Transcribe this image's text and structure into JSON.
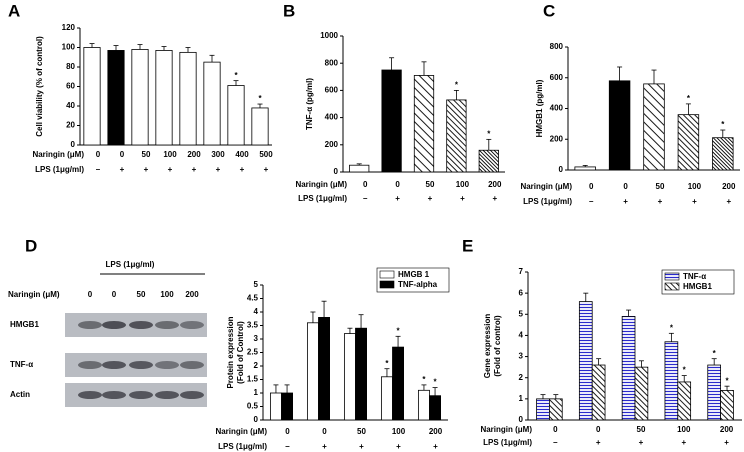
{
  "chart_data": [
    {
      "type": "bar",
      "label": "A",
      "ylabel": [
        "Cell viability (% of control)"
      ],
      "naringin_label": "Naringin (μM)",
      "lps_label": "LPS (1μg/ml)",
      "categories": [
        "0",
        "0",
        "50",
        "100",
        "200",
        "300",
        "400",
        "500"
      ],
      "lps": [
        "–",
        "+",
        "+",
        "+",
        "+",
        "+",
        "+",
        "+"
      ],
      "values": [
        100,
        97,
        98,
        97,
        95,
        85,
        61,
        38
      ],
      "errors": [
        4,
        5,
        5,
        4,
        5,
        7,
        5,
        4
      ],
      "significance": [
        null,
        null,
        null,
        null,
        null,
        null,
        "*",
        "*"
      ],
      "colors": [
        "#ffffff",
        "#000000",
        "#ffffff",
        "#ffffff",
        "#ffffff",
        "#ffffff",
        "#ffffff",
        "#ffffff"
      ],
      "patterns": [
        "solid",
        "solid",
        "solid",
        "solid",
        "solid",
        "solid",
        "solid",
        "solid"
      ],
      "ylim": [
        0,
        120
      ],
      "yticks": [
        0,
        20,
        40,
        60,
        80,
        100,
        120
      ]
    },
    {
      "type": "bar",
      "label": "B",
      "ylabel": [
        "TNF-α (pg/ml)"
      ],
      "naringin_label": "Naringin (μM)",
      "lps_label": "LPS (1μg/ml)",
      "categories": [
        "0",
        "0",
        "50",
        "100",
        "200"
      ],
      "lps": [
        "–",
        "+",
        "+",
        "+",
        "+"
      ],
      "values": [
        50,
        750,
        710,
        530,
        160
      ],
      "errors": [
        10,
        90,
        100,
        70,
        80
      ],
      "significance": [
        null,
        null,
        null,
        "*",
        "*"
      ],
      "colors": [
        "#ffffff",
        "#000000",
        "#000000",
        "#000000",
        "#000000"
      ],
      "patterns": [
        "solid",
        "solid",
        "hatch-sparse",
        "hatch",
        "hatch-dense"
      ],
      "ylim": [
        0,
        1000
      ],
      "yticks": [
        0,
        200,
        400,
        600,
        800,
        1000
      ]
    },
    {
      "type": "bar",
      "label": "C",
      "ylabel": [
        "HMGB1 (pg/ml)"
      ],
      "naringin_label": "Naringin (μM)",
      "lps_label": "LPS (1μg/ml)",
      "categories": [
        "0",
        "0",
        "50",
        "100",
        "200"
      ],
      "lps": [
        "–",
        "+",
        "+",
        "+",
        "+"
      ],
      "values": [
        20,
        580,
        560,
        360,
        210
      ],
      "errors": [
        10,
        90,
        90,
        70,
        50
      ],
      "significance": [
        null,
        null,
        null,
        "*",
        "*"
      ],
      "colors": [
        "#ffffff",
        "#000000",
        "#000000",
        "#000000",
        "#000000"
      ],
      "patterns": [
        "solid",
        "solid",
        "hatch-sparse",
        "hatch",
        "hatch-dense"
      ],
      "ylim": [
        0,
        800
      ],
      "yticks": [
        0,
        200,
        400,
        600,
        800
      ]
    },
    {
      "type": "bar",
      "label": "D",
      "ylabel": [
        "Protein expression",
        "(Fold of Control)"
      ],
      "naringin_label": "Naringin (μM)",
      "lps_label": "LPS (1μg/ml)",
      "categories": [
        "0",
        "0",
        "50",
        "100",
        "200"
      ],
      "lps": [
        "–",
        "+",
        "+",
        "+",
        "+"
      ],
      "legend": "upper right",
      "series": [
        {
          "name": "HMGB 1",
          "color": "#ffffff",
          "pattern": "solid",
          "values": [
            1.0,
            3.6,
            3.2,
            1.6,
            1.1
          ],
          "errors": [
            0.3,
            0.4,
            0.2,
            0.3,
            0.2
          ],
          "significance": [
            null,
            null,
            null,
            "*",
            "*"
          ]
        },
        {
          "name": "TNF-alpha",
          "color": "#000000",
          "pattern": "solid",
          "values": [
            1.0,
            3.8,
            3.4,
            2.7,
            0.9
          ],
          "errors": [
            0.3,
            0.6,
            0.5,
            0.4,
            0.3
          ],
          "significance": [
            null,
            null,
            null,
            "*",
            "*"
          ]
        }
      ],
      "ylim": [
        0,
        5
      ],
      "yticks": [
        0,
        0.5,
        1,
        1.5,
        2,
        2.5,
        3,
        3.5,
        4,
        4.5,
        5
      ]
    },
    {
      "type": "bar",
      "label": "E",
      "ylabel": [
        "Gene expression",
        "(Fold of control)"
      ],
      "naringin_label": "Naringin (μM)",
      "lps_label": "LPS (1μg/ml)",
      "categories": [
        "0",
        "0",
        "50",
        "100",
        "200"
      ],
      "lps": [
        "–",
        "+",
        "+",
        "+",
        "+"
      ],
      "legend": "upper right",
      "series": [
        {
          "name": "TNF-α",
          "color": "#2a2acc",
          "pattern": "hlines",
          "values": [
            1.0,
            5.6,
            4.9,
            3.7,
            2.6
          ],
          "errors": [
            0.2,
            0.4,
            0.3,
            0.4,
            0.3
          ],
          "significance": [
            null,
            null,
            null,
            "*",
            "*"
          ]
        },
        {
          "name": "HMGB1",
          "color": "#000000",
          "pattern": "hatch",
          "values": [
            1.0,
            2.6,
            2.5,
            1.8,
            1.4
          ],
          "errors": [
            0.2,
            0.3,
            0.3,
            0.3,
            0.2
          ],
          "significance": [
            null,
            null,
            null,
            "*",
            "*"
          ]
        }
      ],
      "ylim": [
        0,
        7
      ],
      "yticks": [
        0,
        1,
        2,
        3,
        4,
        5,
        6,
        7
      ]
    }
  ],
  "blot": {
    "lps_label": "LPS (1μg/ml)",
    "naringin_label": "Naringin (μM)",
    "doses": [
      "0",
      "0",
      "50",
      "100",
      "200"
    ],
    "rows": [
      "HMGB1",
      "TNF-α",
      "Actin"
    ]
  }
}
